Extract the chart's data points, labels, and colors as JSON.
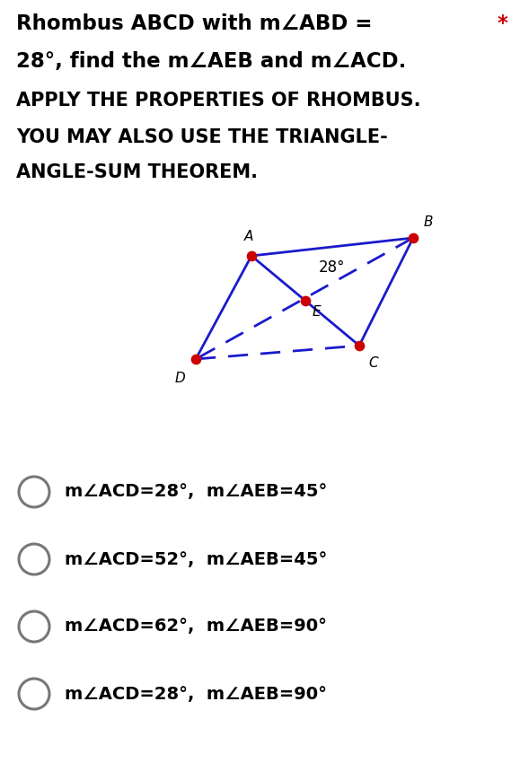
{
  "title_line1": "Rhombus ABCD with m∠ABD =",
  "title_line2": "28°, find the m∠AEB and m∠ACD.",
  "instruction1": "APPLY THE PROPERTIES OF RHOMBUS.",
  "instruction2": "YOU MAY ALSO USE THE TRIANGLE-",
  "instruction3": "ANGLE-SUM THEOREM.",
  "star": "*",
  "star_color": "#cc0000",
  "rhombus_color": "#1a1acd",
  "dot_color": "#cc0000",
  "angle_label": "28°",
  "choices": [
    "m∠ACD=28°,  m∠AEB=45°",
    "m∠ACD=52°,  m∠AEB=45°",
    "m∠ACD=62°,  m∠AEB=90°",
    "m∠ACD=28°,  m∠AEB=90°"
  ],
  "text_color": "#000000",
  "bg_color": "#ffffff",
  "choice_circle_color": "#777777",
  "A": [
    0.42,
    0.735
  ],
  "B": [
    0.74,
    0.735
  ],
  "C": [
    0.64,
    0.565
  ],
  "D": [
    0.32,
    0.565
  ]
}
